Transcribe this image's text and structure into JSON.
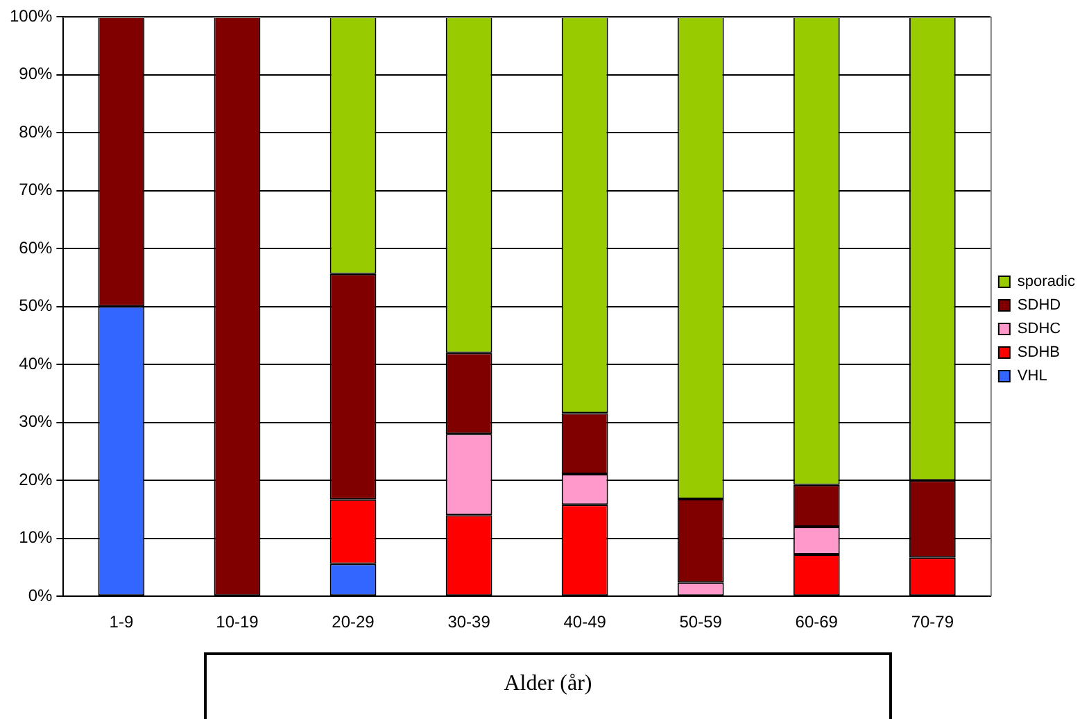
{
  "chart_data": {
    "type": "bar",
    "stacked": true,
    "xlabel": "Alder (år)",
    "categories": [
      "1-9",
      "10-19",
      "20-29",
      "30-39",
      "40-49",
      "50-59",
      "60-69",
      "70-79"
    ],
    "series": [
      {
        "name": "VHL",
        "color": "#3366ff",
        "values": [
          50,
          0,
          5.6,
          0,
          0,
          0,
          0,
          0
        ]
      },
      {
        "name": "SDHB",
        "color": "#ff0000",
        "values": [
          0,
          0,
          11.1,
          14,
          15.8,
          0,
          7.2,
          6.7
        ]
      },
      {
        "name": "SDHC",
        "color": "#ff99cc",
        "values": [
          0,
          0,
          0,
          14,
          5.3,
          2.4,
          4.8,
          0
        ]
      },
      {
        "name": "SDHD",
        "color": "#800000",
        "values": [
          50,
          100,
          38.9,
          14,
          10.5,
          14.4,
          7.2,
          13.3
        ]
      },
      {
        "name": "sporadic",
        "color": "#99cc00",
        "values": [
          0,
          0,
          44.4,
          58,
          68.4,
          83.2,
          80.8,
          80
        ]
      }
    ],
    "ylim": [
      0,
      100
    ],
    "yticks": [
      {
        "value": 0,
        "label": "0%"
      },
      {
        "value": 10,
        "label": "10%"
      },
      {
        "value": 20,
        "label": "20%"
      },
      {
        "value": 30,
        "label": "30%"
      },
      {
        "value": 40,
        "label": "40%"
      },
      {
        "value": 50,
        "label": "50%"
      },
      {
        "value": 60,
        "label": "60%"
      },
      {
        "value": 70,
        "label": "70%"
      },
      {
        "value": 80,
        "label": "80%"
      },
      {
        "value": 90,
        "label": "90%"
      },
      {
        "value": 100,
        "label": "100%"
      }
    ],
    "grid": "y",
    "legend": "right"
  }
}
